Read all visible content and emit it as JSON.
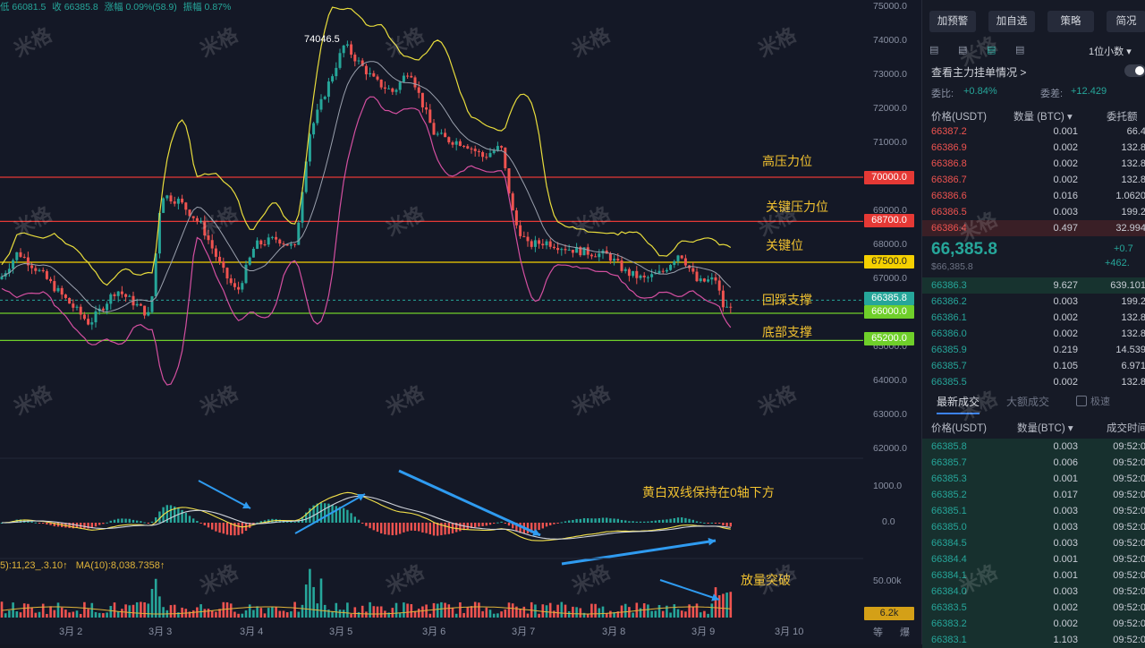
{
  "chart": {
    "top_info": {
      "low": "低 66081.5",
      "close": "收 66385.8",
      "change": "涨幅 0.09%(58.9)",
      "amplitude": "振幅 0.87%"
    },
    "peak_label": "74046.5",
    "volume_legend": {
      "ma5": "5):11,23_.3.10↑",
      "ma10": "MA(10):8,038.7358↑"
    },
    "price_axis": [
      "75000.0",
      "74000.0",
      "73000.0",
      "72000.0",
      "71000.0",
      "70000.0",
      "69000.0",
      "68000.0",
      "67000.0",
      "66000.0",
      "65000.0",
      "64000.0",
      "63000.0",
      "62000.0"
    ],
    "macd_axis": [
      "1000.0",
      "0.0"
    ],
    "volume_axis": [
      "50.00k"
    ],
    "x_axis": [
      "3月 2",
      "3月 3",
      "3月 4",
      "3月 5",
      "3月 6",
      "3月 7",
      "3月 8",
      "3月 9",
      "3月 10"
    ],
    "corner_labels": [
      "等",
      "爆"
    ],
    "levels": [
      {
        "label": "70000.0",
        "color": "#e53935",
        "annotation": "高压力位"
      },
      {
        "label": "68700.0",
        "color": "#e53935",
        "annotation": "关键压力位"
      },
      {
        "label": "67500.0",
        "color": "#f5d000",
        "annotation": "关键位"
      },
      {
        "label": "66385.8",
        "color": "#26a69a",
        "annotation": "回踩支撑"
      },
      {
        "label": "66000.0",
        "color": "#6fcf2a",
        "annotation": ""
      },
      {
        "label": "65200.0",
        "color": "#6fcf2a",
        "annotation": "底部支撑"
      }
    ],
    "macd_note": "黄白双线保持在0轴下方",
    "volume_note": "放量突破",
    "volume_tag": "6.2k",
    "watermark": "米格",
    "colors": {
      "up": "#26a69a",
      "down": "#ef5350",
      "boll_upper": "#e8dc3c",
      "boll_mid": "#9aa0ad",
      "boll_lower": "#d34fa0",
      "arrow": "#2f9bf0"
    }
  },
  "panel": {
    "buttons": [
      "加预警",
      "加自选",
      "策略",
      "简况"
    ],
    "decimal_select": "1位小数",
    "main_orders_link": "查看主力挂单情况 >",
    "bid_ratio_label": "委比:",
    "bid_ratio_value": "+0.84%",
    "bid_diff_label": "委差:",
    "bid_diff_value": "+12.429",
    "order_header": {
      "price": "价格(USDT)",
      "qty": "数量 (BTC) ▾",
      "total": "委托额"
    },
    "asks": [
      {
        "price": "66387.2",
        "qty": "0.001",
        "total": "66.4"
      },
      {
        "price": "66386.9",
        "qty": "0.002",
        "total": "132.8"
      },
      {
        "price": "66386.8",
        "qty": "0.002",
        "total": "132.8"
      },
      {
        "price": "66386.7",
        "qty": "0.002",
        "total": "132.8"
      },
      {
        "price": "66386.6",
        "qty": "0.016",
        "total": "1.0620"
      },
      {
        "price": "66386.5",
        "qty": "0.003",
        "total": "199.2"
      },
      {
        "price": "66386.4",
        "qty": "0.497",
        "total": "32.994"
      }
    ],
    "last_price": "66,385.8",
    "last_price_sub": "$66,385.8",
    "change_pct": "+0.7",
    "change_abs": "+462.",
    "bids": [
      {
        "price": "66386.3",
        "qty": "9.627",
        "total": "639.101"
      },
      {
        "price": "66386.2",
        "qty": "0.003",
        "total": "199.2"
      },
      {
        "price": "66386.1",
        "qty": "0.002",
        "total": "132.8"
      },
      {
        "price": "66386.0",
        "qty": "0.002",
        "total": "132.8"
      },
      {
        "price": "66385.9",
        "qty": "0.219",
        "total": "14.539"
      },
      {
        "price": "66385.7",
        "qty": "0.105",
        "total": "6.971"
      },
      {
        "price": "66385.5",
        "qty": "0.002",
        "total": "132.8"
      }
    ],
    "tabs": {
      "latest": "最新成交",
      "large": "大额成交",
      "fast_label": "极速"
    },
    "trade_header": {
      "price": "价格(USDT)",
      "qty": "数量(BTC) ▾",
      "time": "成交时间"
    },
    "trades": [
      {
        "price": "66385.8",
        "qty": "0.003",
        "time": "09:52:0"
      },
      {
        "price": "66385.7",
        "qty": "0.006",
        "time": "09:52:0"
      },
      {
        "price": "66385.3",
        "qty": "0.001",
        "time": "09:52:0"
      },
      {
        "price": "66385.2",
        "qty": "0.017",
        "time": "09:52:0"
      },
      {
        "price": "66385.1",
        "qty": "0.003",
        "time": "09:52:0"
      },
      {
        "price": "66385.0",
        "qty": "0.003",
        "time": "09:52:0"
      },
      {
        "price": "66384.5",
        "qty": "0.003",
        "time": "09:52:0"
      },
      {
        "price": "66384.4",
        "qty": "0.001",
        "time": "09:52:0"
      },
      {
        "price": "66384.1",
        "qty": "0.001",
        "time": "09:52:0"
      },
      {
        "price": "66384.0",
        "qty": "0.003",
        "time": "09:52:0"
      },
      {
        "price": "66383.5",
        "qty": "0.002",
        "time": "09:52:0"
      },
      {
        "price": "66383.2",
        "qty": "0.002",
        "time": "09:52:0"
      },
      {
        "price": "66383.1",
        "qty": "1.103",
        "time": "09:52:0"
      }
    ]
  }
}
